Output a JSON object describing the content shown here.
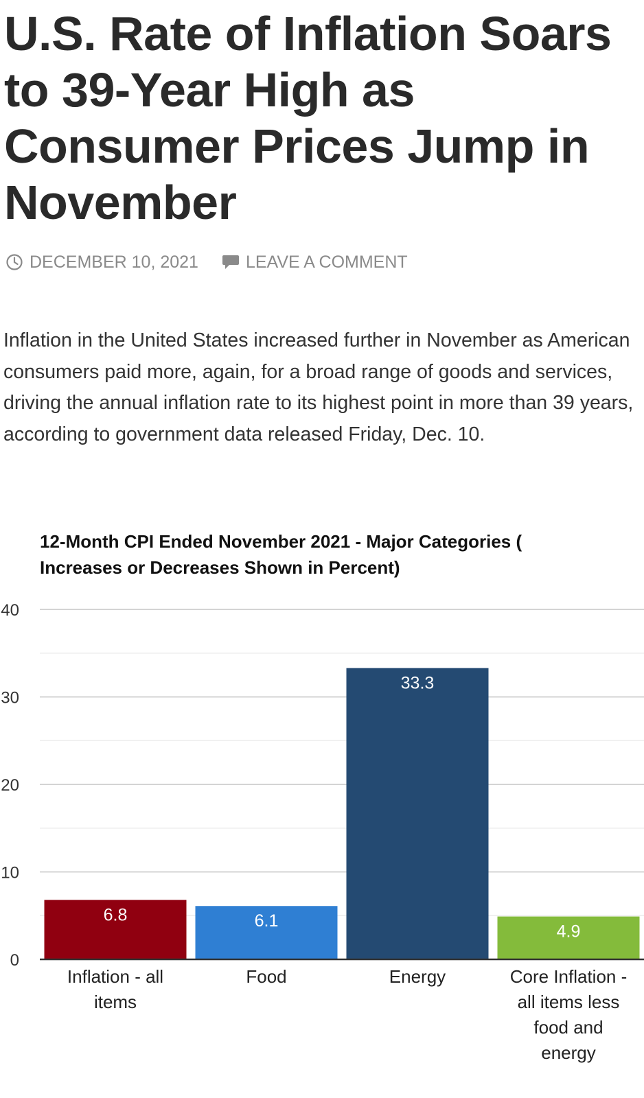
{
  "article": {
    "title": "U.S. Rate of Inflation Soars to 39-Year High as Consumer Prices Jump in November",
    "date": "DECEMBER 10, 2021",
    "comment_link": "LEAVE A COMMENT",
    "intro": "Inflation in the United States increased further in November as American consumers paid more, again, for a broad range of goods and services, driving the annual inflation rate to its highest point in more than 39 years, according to government data released Friday, Dec. 10.",
    "icons": {
      "date": "clock-icon",
      "comment": "speech-bubble-icon"
    }
  },
  "chart_data": {
    "type": "bar",
    "title": "12-Month CPI Ended November 2021 - Major Categories ( Increases or Decreases Shown in Percent)",
    "categories": [
      "Inflation - all items",
      "Food",
      "Energy",
      "Core Inflation - all items less food and energy"
    ],
    "category_lines": [
      [
        "Inflation - all",
        "items"
      ],
      [
        "Food"
      ],
      [
        "Energy"
      ],
      [
        "Core Inflation -",
        "all items less",
        "food and",
        "energy"
      ]
    ],
    "values": [
      6.8,
      6.1,
      33.3,
      4.9
    ],
    "data_labels": [
      "6.8",
      "6.1",
      "33.3",
      "4.9"
    ],
    "colors": [
      "#900010",
      "#2f7fd3",
      "#244a72",
      "#84bb3b"
    ],
    "ylim": [
      0,
      40
    ],
    "yticks": [
      0,
      10,
      20,
      30,
      40
    ],
    "ytick_labels": [
      "0",
      "10",
      "20",
      "30",
      "40"
    ],
    "xlabel": "",
    "ylabel": "",
    "grid": true
  }
}
